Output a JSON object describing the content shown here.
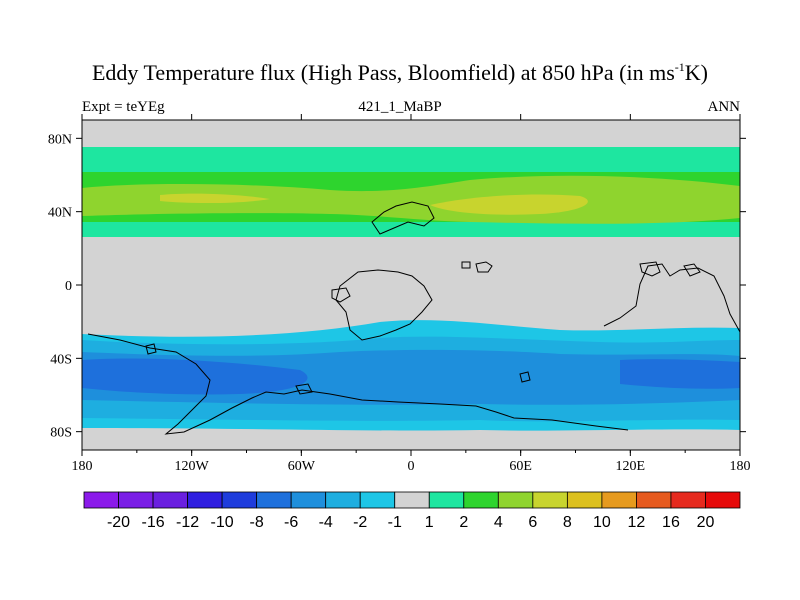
{
  "title": {
    "main": "Eddy Temperature flux (High Pass, Bloomfield) at 850 hPa (in ms",
    "sup": "-1",
    "tail": "K)"
  },
  "subtitle": {
    "left": "Expt = teYEg",
    "center": "421_1_MaBP",
    "right": "ANN"
  },
  "map": {
    "longitude_labels": [
      "180",
      "120W",
      "60W",
      "0",
      "60E",
      "120E",
      "180"
    ],
    "latitude_labels": [
      "80N",
      "40N",
      "0",
      "40S",
      "80S"
    ],
    "background_color": "#d3d3d3"
  },
  "colorbar": {
    "labels": [
      "-20",
      "-16",
      "-12",
      "-10",
      "-8",
      "-6",
      "-4",
      "-2",
      "-1",
      "1",
      "2",
      "4",
      "6",
      "8",
      "10",
      "12",
      "16",
      "20"
    ],
    "colors": [
      "#8b1aea",
      "#7a1ee6",
      "#6a1fe0",
      "#2f1ee0",
      "#1e3cdc",
      "#1e70dc",
      "#1e8fdc",
      "#1eaee0",
      "#1ec6e6",
      "#d3d3d3",
      "#1ee6a0",
      "#2ed42e",
      "#8fd42e",
      "#c8d42e",
      "#dcc01e",
      "#e69a1e",
      "#e65a1e",
      "#e62a1e",
      "#e60a0a"
    ]
  }
}
